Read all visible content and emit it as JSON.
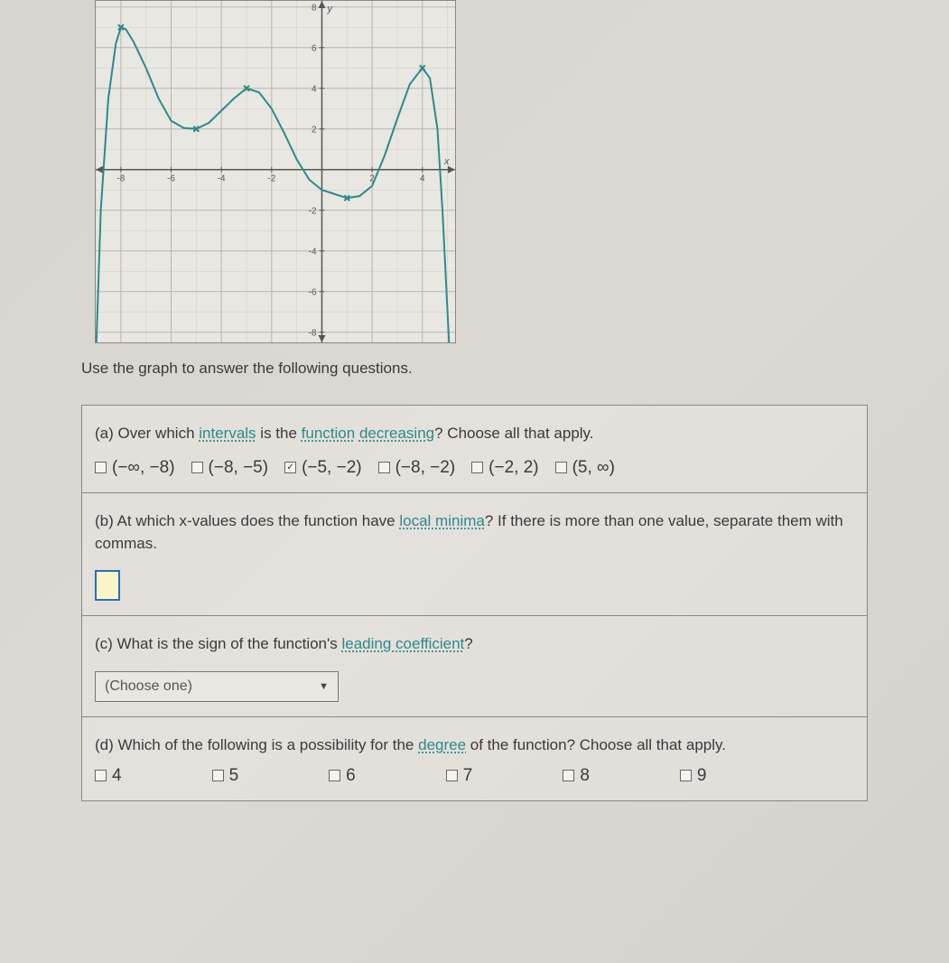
{
  "graph": {
    "type": "line",
    "xlim": [
      -9,
      5.3
    ],
    "ylim": [
      -8.5,
      8.3
    ],
    "xtick_step": 2,
    "ytick_step": 2,
    "xticks": [
      -8,
      -6,
      -4,
      -2,
      2,
      4
    ],
    "yticks": [
      -8,
      -6,
      -4,
      -2,
      2,
      4,
      6,
      8
    ],
    "axis_color": "#555555",
    "grid_color": "#b8b5af",
    "grid_minor_color": "#d0cdc6",
    "background_color": "#e9e7e2",
    "curve_color": "#2b8a8a",
    "curve_width": 2,
    "xlabel": "x",
    "ylabel": "y",
    "label_fontsize": 11,
    "tick_fontsize": 10,
    "curve_points": [
      [
        -9.0,
        -9.5
      ],
      [
        -8.8,
        -2.0
      ],
      [
        -8.5,
        3.5
      ],
      [
        -8.2,
        6.2
      ],
      [
        -8.0,
        7.0
      ],
      [
        -7.8,
        6.9
      ],
      [
        -7.5,
        6.3
      ],
      [
        -7.0,
        5.0
      ],
      [
        -6.5,
        3.5
      ],
      [
        -6.0,
        2.4
      ],
      [
        -5.5,
        2.05
      ],
      [
        -5.0,
        2.0
      ],
      [
        -4.5,
        2.3
      ],
      [
        -4.0,
        2.9
      ],
      [
        -3.5,
        3.5
      ],
      [
        -3.0,
        4.0
      ],
      [
        -2.5,
        3.8
      ],
      [
        -2.0,
        3.0
      ],
      [
        -1.5,
        1.8
      ],
      [
        -1.0,
        0.5
      ],
      [
        -0.5,
        -0.5
      ],
      [
        0.0,
        -1.0
      ],
      [
        0.5,
        -1.2
      ],
      [
        1.0,
        -1.4
      ],
      [
        1.5,
        -1.3
      ],
      [
        2.0,
        -0.8
      ],
      [
        2.5,
        0.7
      ],
      [
        3.0,
        2.5
      ],
      [
        3.5,
        4.2
      ],
      [
        4.0,
        5.0
      ],
      [
        4.3,
        4.5
      ],
      [
        4.6,
        2.0
      ],
      [
        4.8,
        -2.0
      ],
      [
        5.0,
        -7.0
      ],
      [
        5.1,
        -9.5
      ]
    ],
    "markers": [
      {
        "x": -8.0,
        "y": 7.0
      },
      {
        "x": -5.0,
        "y": 2.0
      },
      {
        "x": -3.0,
        "y": 4.0
      },
      {
        "x": 1.0,
        "y": -1.4
      },
      {
        "x": 4.0,
        "y": 5.0
      }
    ],
    "marker_color": "#2b8a8a",
    "marker_style_is_x": true,
    "marker_size": 6
  },
  "instruction": "Use the graph to answer the following questions.",
  "qa": {
    "prefix": "(a) Over which ",
    "term_intervals": "intervals",
    "mid1": " is the ",
    "term_function": "function",
    "mid2": " ",
    "term_decreasing": "decreasing",
    "suffix": "? Choose all that apply.",
    "options": [
      {
        "label": "(−∞, −8)",
        "checked": false
      },
      {
        "label": "(−8, −5)",
        "checked": false
      },
      {
        "label": "(−5, −2)",
        "checked": true
      },
      {
        "label": "(−8, −2)",
        "checked": false
      },
      {
        "label": "(−2, 2)",
        "checked": false
      },
      {
        "label": "(5, ∞)",
        "checked": false
      }
    ]
  },
  "qb": {
    "prefix": "(b) At which x-values does the function have ",
    "term_localmin": "local minima",
    "suffix": "? If there is more than one value, separate them with commas.",
    "input_value": ""
  },
  "qc": {
    "prefix": "(c) What is the sign of the function's ",
    "term_leading": "leading coefficient",
    "suffix": "?",
    "select_placeholder": "(Choose one)"
  },
  "qd": {
    "prefix": "(d) Which of the following is a possibility for the ",
    "term_degree": "degree",
    "suffix": " of the function? Choose all that apply.",
    "options": [
      {
        "label": "4",
        "checked": false
      },
      {
        "label": "5",
        "checked": false
      },
      {
        "label": "6",
        "checked": false
      },
      {
        "label": "7",
        "checked": false
      },
      {
        "label": "8",
        "checked": false
      },
      {
        "label": "9",
        "checked": false
      }
    ]
  }
}
